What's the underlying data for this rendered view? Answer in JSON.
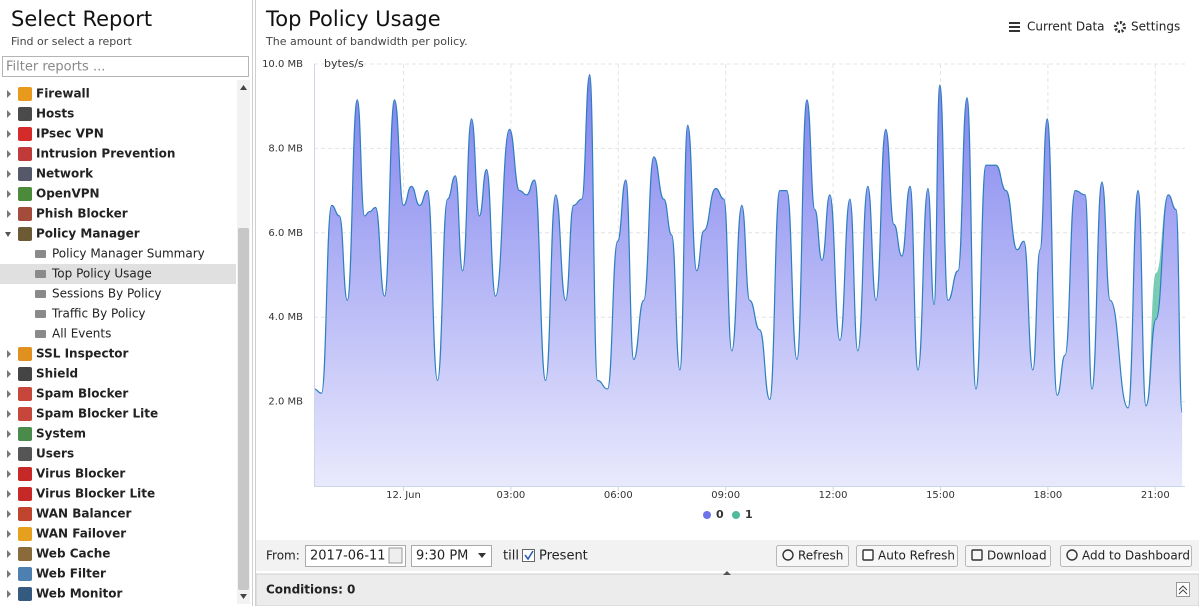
{
  "sidebar": {
    "title": "Select Report",
    "subtitle": "Find or select a report",
    "filter_placeholder": "Filter reports ...",
    "items": [
      {
        "label": "Firewall"
      },
      {
        "label": "Hosts"
      },
      {
        "label": "IPsec VPN"
      },
      {
        "label": "Intrusion Prevention"
      },
      {
        "label": "Network"
      },
      {
        "label": "OpenVPN"
      },
      {
        "label": "Phish Blocker"
      },
      {
        "label": "Policy Manager",
        "children": [
          {
            "label": "Policy Manager Summary"
          },
          {
            "label": "Top Policy Usage",
            "selected": true
          },
          {
            "label": "Sessions By Policy"
          },
          {
            "label": "Traffic By Policy"
          },
          {
            "label": "All Events"
          }
        ]
      },
      {
        "label": "SSL Inspector"
      },
      {
        "label": "Shield"
      },
      {
        "label": "Spam Blocker"
      },
      {
        "label": "Spam Blocker Lite"
      },
      {
        "label": "System"
      },
      {
        "label": "Users"
      },
      {
        "label": "Virus Blocker"
      },
      {
        "label": "Virus Blocker Lite"
      },
      {
        "label": "WAN Balancer"
      },
      {
        "label": "WAN Failover"
      },
      {
        "label": "Web Cache"
      },
      {
        "label": "Web Filter"
      },
      {
        "label": "Web Monitor"
      }
    ]
  },
  "report": {
    "title": "Top Policy Usage",
    "subtitle": "The amount of bandwidth per policy.",
    "actions": [
      "Current Data",
      "Settings"
    ]
  },
  "chart_data": {
    "type": "area",
    "stacked": true,
    "y_label": "bytes/s",
    "xlim": [
      -2.5,
      21.83
    ],
    "xticks": [
      {
        "value": 0,
        "label": "12. Jun"
      },
      {
        "value": 3,
        "label": "03:00"
      },
      {
        "value": 6,
        "label": "06:00"
      },
      {
        "value": 9,
        "label": "09:00"
      },
      {
        "value": 12,
        "label": "12:00"
      },
      {
        "value": 15,
        "label": "15:00"
      },
      {
        "value": 18,
        "label": "18:00"
      },
      {
        "value": 21,
        "label": "21:00"
      }
    ],
    "ylim": [
      0,
      10
    ],
    "yticks": [
      {
        "value": 2,
        "label": "2.0 MB"
      },
      {
        "value": 4,
        "label": "4.0 MB"
      },
      {
        "value": 6,
        "label": "6.0 MB"
      },
      {
        "value": 8,
        "label": "8.0 MB"
      },
      {
        "value": 10,
        "label": "10.0 MB"
      }
    ],
    "grid": true,
    "x": [
      -2.5,
      -2.29,
      -2.01,
      -1.79,
      -1.57,
      -1.29,
      -1.09,
      -0.95,
      -0.78,
      -0.53,
      -0.25,
      0,
      0.22,
      0.45,
      0.67,
      0.95,
      1.23,
      1.45,
      1.65,
      1.9,
      2.12,
      2.32,
      2.57,
      2.96,
      3.24,
      3.44,
      3.66,
      3.97,
      4.25,
      4.53,
      4.75,
      4.98,
      5.2,
      5.42,
      5.7,
      5.98,
      6.21,
      6.43,
      6.71,
      6.99,
      7.27,
      7.49,
      7.72,
      7.94,
      8.19,
      8.39,
      8.72,
      8.95,
      9.17,
      9.45,
      9.67,
      9.95,
      10.23,
      10.51,
      10.71,
      10.99,
      11.27,
      11.49,
      11.69,
      11.91,
      12.19,
      12.47,
      12.69,
      12.97,
      13.2,
      13.47,
      13.7,
      13.92,
      14.15,
      14.37,
      14.65,
      14.82,
      14.98,
      15.21,
      15.49,
      15.74,
      15.99,
      16.27,
      16.55,
      16.83,
      17.14,
      17.33,
      17.58,
      17.78,
      17.98,
      18.26,
      18.48,
      18.76,
      19.04,
      19.23,
      19.51,
      19.74,
      20.24,
      20.52,
      20.74,
      21.02,
      21.36,
      21.58,
      21.75
    ],
    "series": [
      {
        "name": "0",
        "color": "#6f73e8",
        "values": [
          2.3,
          2.2,
          6.65,
          6.4,
          4.4,
          9.15,
          6.4,
          6.5,
          6.6,
          4.5,
          9.15,
          6.65,
          7.1,
          6.65,
          7.0,
          2.5,
          6.8,
          7.35,
          5.1,
          8.7,
          6.4,
          7.5,
          4.5,
          8.45,
          7.0,
          6.9,
          7.25,
          2.5,
          6.9,
          4.4,
          6.65,
          6.8,
          9.75,
          2.5,
          2.3,
          5.8,
          7.25,
          3.0,
          4.4,
          7.8,
          6.8,
          5.95,
          2.75,
          8.55,
          5.1,
          6.05,
          7.05,
          6.8,
          3.2,
          6.65,
          4.4,
          3.7,
          2.05,
          7.0,
          7.0,
          3.0,
          9.15,
          6.55,
          5.35,
          6.9,
          3.45,
          6.8,
          3.2,
          7.1,
          4.4,
          8.45,
          6.2,
          5.45,
          7.1,
          2.75,
          7.05,
          4.3,
          9.5,
          4.4,
          5.1,
          9.2,
          2.3,
          7.6,
          7.6,
          7.0,
          5.6,
          5.8,
          2.75,
          5.6,
          8.7,
          2.15,
          3.1,
          7.0,
          6.9,
          2.3,
          7.2,
          4.4,
          1.85,
          7.0,
          1.9,
          3.95,
          6.9,
          6.55,
          1.75
        ]
      },
      {
        "name": "1",
        "color": "#4dbb9b",
        "values": [
          0,
          0,
          0,
          0,
          0,
          0,
          0,
          0,
          0,
          0,
          0,
          0,
          0,
          0,
          0,
          0,
          0,
          0,
          0,
          0,
          0,
          0,
          0,
          0,
          0,
          0,
          0,
          0,
          0,
          0,
          0,
          0,
          0,
          0,
          0,
          0,
          0,
          0,
          0,
          0,
          0,
          0,
          0,
          0,
          0,
          0,
          0,
          0,
          0,
          0,
          0,
          0,
          0,
          0,
          0,
          0,
          0,
          0,
          0,
          0,
          0,
          0,
          0,
          0,
          0,
          0,
          0,
          0,
          0,
          0,
          0,
          0,
          0,
          0,
          0,
          0,
          0,
          0,
          0,
          0,
          0,
          0,
          0,
          0,
          0,
          0,
          0,
          0,
          0,
          0,
          0,
          0,
          0,
          0,
          0,
          1.1,
          0,
          0,
          0
        ]
      }
    ]
  },
  "toolbar": {
    "from_label": "From:",
    "date": "2017-06-11",
    "time": "9:30 PM",
    "till_label": "till",
    "present_label": "Present",
    "buttons": [
      "Refresh",
      "Auto Refresh",
      "Download",
      "Add to Dashboard"
    ]
  },
  "conditions": {
    "label": "Conditions: 0"
  }
}
